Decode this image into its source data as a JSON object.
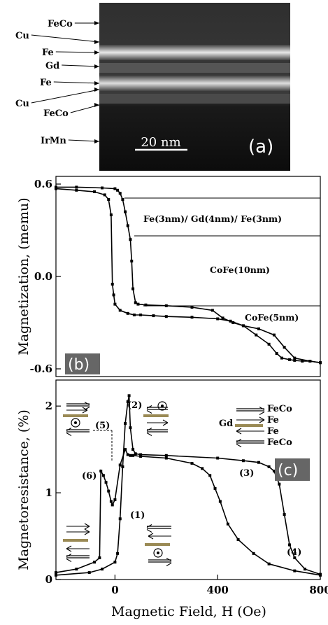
{
  "panel_a": {
    "labels": [
      "FeCo",
      "Cu",
      "Fe",
      "Gd",
      "Fe",
      "Cu",
      "FeCo",
      "IrMn"
    ],
    "scalebar": "20 nm",
    "tag": "(a)"
  },
  "panel_b": {
    "tag": "(b)",
    "ylabel": "Magnetization, (memu)",
    "annotations": [
      "Fe(3nm)/ Gd(4nm)/ Fe(3nm)",
      "CoFe(10nm)",
      "CoFe(5nm)"
    ]
  },
  "panel_c": {
    "tag": "(c)",
    "ylabel": "Magnetoresistance, (%)",
    "xlabel": "Magnetic Field, H (Oe)",
    "state_labels": [
      "(1)",
      "(2)",
      "(3)",
      "(4)",
      "(5)",
      "(6)"
    ],
    "stack_legend": {
      "left": "Gd",
      "right": [
        "FeCo",
        "Fe",
        "Fe",
        "FeCo"
      ]
    }
  },
  "chart_data": [
    {
      "type": "line",
      "title": "",
      "xlabel": "",
      "ylabel": "Magnetization, (memu)",
      "xlim": [
        -230,
        800
      ],
      "ylim": [
        -0.65,
        0.65
      ],
      "yticks": [
        0.6,
        0.0,
        -0.6
      ],
      "grid": false,
      "series": [
        {
          "x": [
            -230,
            -150,
            -80,
            -40,
            -25,
            -15,
            -10,
            -5,
            0,
            20,
            50,
            75,
            100,
            150,
            200,
            300,
            400,
            450,
            500,
            550,
            600,
            630,
            650,
            680,
            700,
            730,
            760,
            800
          ],
          "y": [
            0.57,
            0.56,
            0.55,
            0.53,
            0.5,
            0.4,
            -0.05,
            -0.12,
            -0.18,
            -0.22,
            -0.24,
            -0.25,
            -0.25,
            -0.255,
            -0.26,
            -0.265,
            -0.275,
            -0.29,
            -0.32,
            -0.38,
            -0.44,
            -0.5,
            -0.53,
            -0.54,
            -0.545,
            -0.55,
            -0.55,
            -0.56
          ]
        },
        {
          "x": [
            -230,
            -150,
            -50,
            0,
            10,
            20,
            30,
            40,
            50,
            60,
            65,
            70,
            80,
            90,
            120,
            200,
            300,
            380,
            420,
            460,
            500,
            560,
            620,
            660,
            700,
            760,
            800
          ],
          "y": [
            0.58,
            0.58,
            0.575,
            0.57,
            0.56,
            0.54,
            0.5,
            0.42,
            0.33,
            0.24,
            0.1,
            -0.08,
            -0.17,
            -0.18,
            -0.185,
            -0.19,
            -0.2,
            -0.22,
            -0.27,
            -0.3,
            -0.32,
            -0.34,
            -0.38,
            -0.46,
            -0.53,
            -0.55,
            -0.56
          ]
        }
      ]
    },
    {
      "type": "line",
      "title": "",
      "xlabel": "Magnetic Field, H (Oe)",
      "ylabel": "Magnetoresistance, (%)",
      "xlim": [
        -230,
        800
      ],
      "ylim": [
        0,
        2.3
      ],
      "xticks": [
        0,
        400,
        800
      ],
      "yticks": [
        0,
        1,
        2
      ],
      "grid": false,
      "series": [
        {
          "x": [
            -230,
            -150,
            -80,
            -60,
            -55,
            -45,
            -35,
            -25,
            -15,
            -10,
            0,
            20,
            40,
            50,
            60,
            70,
            100,
            200,
            300,
            340,
            370,
            390,
            410,
            440,
            480,
            540,
            600,
            700,
            800
          ],
          "y": [
            0.08,
            0.12,
            0.2,
            0.25,
            1.25,
            1.2,
            1.12,
            1.02,
            0.9,
            0.86,
            0.92,
            1.32,
            1.5,
            1.44,
            1.43,
            1.43,
            1.42,
            1.4,
            1.34,
            1.28,
            1.2,
            1.05,
            0.9,
            0.64,
            0.46,
            0.3,
            0.18,
            0.1,
            0.05
          ]
        },
        {
          "x": [
            -230,
            -100,
            -50,
            0,
            10,
            20,
            30,
            40,
            50,
            55,
            60,
            70,
            80,
            100,
            200,
            400,
            500,
            560,
            600,
            620,
            640,
            660,
            680,
            700,
            740,
            800
          ],
          "y": [
            0.05,
            0.08,
            0.12,
            0.2,
            0.3,
            0.7,
            1.3,
            1.8,
            2.05,
            2.12,
            1.75,
            1.5,
            1.45,
            1.44,
            1.43,
            1.4,
            1.37,
            1.35,
            1.3,
            1.25,
            1.1,
            0.75,
            0.4,
            0.25,
            0.12,
            0.06
          ]
        }
      ]
    }
  ]
}
